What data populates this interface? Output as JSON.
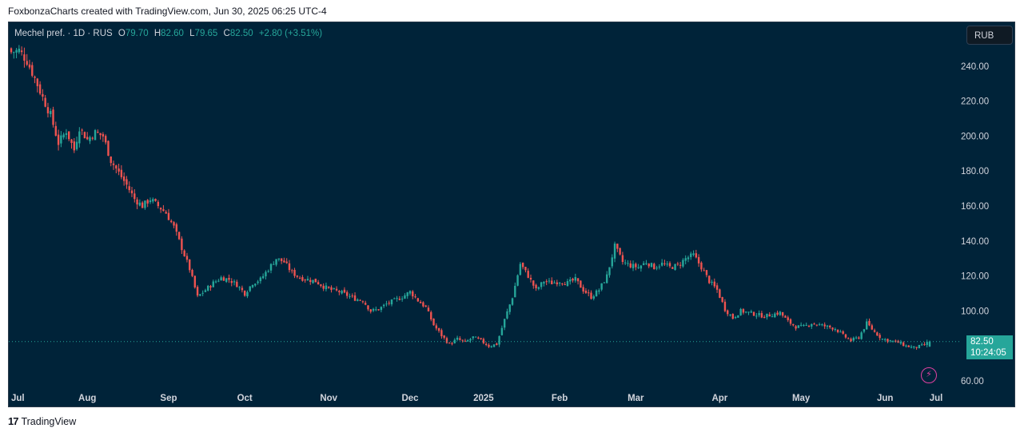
{
  "caption": "FoxbonzaCharts created with TradingView.com, Jun 30, 2025 06:25 UTC-4",
  "legend": {
    "symbol": "Mechel pref. · 1D · RUS",
    "open_label": "O",
    "open": "79.70",
    "high_label": "H",
    "high": "82.60",
    "low_label": "L",
    "low": "79.65",
    "close_label": "C",
    "close": "82.50",
    "change": "+2.80 (+3.51%)"
  },
  "currency": "RUB",
  "price_tag": {
    "price": "82.50",
    "countdown": "10:24:05"
  },
  "footer": {
    "logo": "17",
    "brand": "TradingView"
  },
  "colors": {
    "up": "#26a69a",
    "down": "#ef5350",
    "background": "#002339",
    "text": "#d1d4dc"
  },
  "chart_data": {
    "type": "candlestick",
    "y_ticks": [
      "240.00",
      "220.00",
      "200.00",
      "180.00",
      "160.00",
      "140.00",
      "120.00",
      "100.00",
      "60.00"
    ],
    "y_range": [
      55,
      265
    ],
    "x_ticks": [
      "Jul",
      "Aug",
      "Sep",
      "Oct",
      "Nov",
      "Dec",
      "2025",
      "Feb",
      "Mar",
      "Apr",
      "May",
      "Jun",
      "Jul"
    ],
    "last_price": 82.5,
    "close_path": [
      [
        0,
        248
      ],
      [
        3,
        249
      ],
      [
        6,
        243
      ],
      [
        9,
        233
      ],
      [
        12,
        222
      ],
      [
        15,
        212
      ],
      [
        18,
        196
      ],
      [
        21,
        203
      ],
      [
        24,
        192
      ],
      [
        26,
        205
      ],
      [
        29,
        198
      ],
      [
        32,
        202
      ],
      [
        35,
        200
      ],
      [
        38,
        186
      ],
      [
        41,
        179
      ],
      [
        44,
        172
      ],
      [
        47,
        164
      ],
      [
        50,
        160
      ],
      [
        53,
        164
      ],
      [
        56,
        160
      ],
      [
        59,
        156
      ],
      [
        62,
        148
      ],
      [
        65,
        136
      ],
      [
        68,
        124
      ],
      [
        71,
        108
      ],
      [
        74,
        112
      ],
      [
        77,
        116
      ],
      [
        80,
        119
      ],
      [
        83,
        118
      ],
      [
        86,
        115
      ],
      [
        89,
        110
      ],
      [
        92,
        116
      ],
      [
        95,
        118
      ],
      [
        98,
        124
      ],
      [
        101,
        130
      ],
      [
        104,
        128
      ],
      [
        107,
        122
      ],
      [
        110,
        119
      ],
      [
        113,
        118
      ],
      [
        116,
        117
      ],
      [
        119,
        114
      ],
      [
        122,
        112
      ],
      [
        125,
        111
      ],
      [
        128,
        109
      ],
      [
        131,
        107
      ],
      [
        134,
        106
      ],
      [
        137,
        100
      ],
      [
        140,
        101
      ],
      [
        143,
        104
      ],
      [
        146,
        106
      ],
      [
        149,
        108
      ],
      [
        152,
        111
      ],
      [
        155,
        106
      ],
      [
        158,
        102
      ],
      [
        161,
        92
      ],
      [
        164,
        86
      ],
      [
        167,
        81
      ],
      [
        170,
        84
      ],
      [
        173,
        82
      ],
      [
        176,
        85
      ],
      [
        179,
        83
      ],
      [
        182,
        80
      ],
      [
        185,
        81
      ],
      [
        188,
        95
      ],
      [
        191,
        108
      ],
      [
        194,
        127
      ],
      [
        197,
        120
      ],
      [
        200,
        112
      ],
      [
        203,
        117
      ],
      [
        206,
        116
      ],
      [
        209,
        117
      ],
      [
        212,
        116
      ],
      [
        215,
        118
      ],
      [
        218,
        112
      ],
      [
        221,
        108
      ],
      [
        224,
        112
      ],
      [
        227,
        120
      ],
      [
        230,
        137
      ],
      [
        233,
        128
      ],
      [
        236,
        126
      ],
      [
        239,
        125
      ],
      [
        242,
        128
      ],
      [
        245,
        125
      ],
      [
        248,
        127
      ],
      [
        251,
        125
      ],
      [
        254,
        126
      ],
      [
        257,
        130
      ],
      [
        260,
        132
      ],
      [
        263,
        125
      ],
      [
        266,
        117
      ],
      [
        269,
        112
      ],
      [
        272,
        101
      ],
      [
        275,
        96
      ],
      [
        278,
        100
      ],
      [
        281,
        99
      ],
      [
        284,
        98
      ],
      [
        287,
        97
      ],
      [
        290,
        98
      ],
      [
        293,
        99
      ],
      [
        296,
        94
      ],
      [
        299,
        91
      ],
      [
        302,
        91
      ],
      [
        305,
        93
      ],
      [
        308,
        92
      ],
      [
        311,
        91
      ],
      [
        314,
        90
      ],
      [
        317,
        86
      ],
      [
        320,
        83
      ],
      [
        323,
        85
      ],
      [
        326,
        93
      ],
      [
        329,
        88
      ],
      [
        332,
        84
      ],
      [
        335,
        83
      ],
      [
        338,
        82
      ],
      [
        341,
        80
      ],
      [
        344,
        79
      ],
      [
        347,
        80
      ],
      [
        350,
        82.5
      ]
    ]
  }
}
